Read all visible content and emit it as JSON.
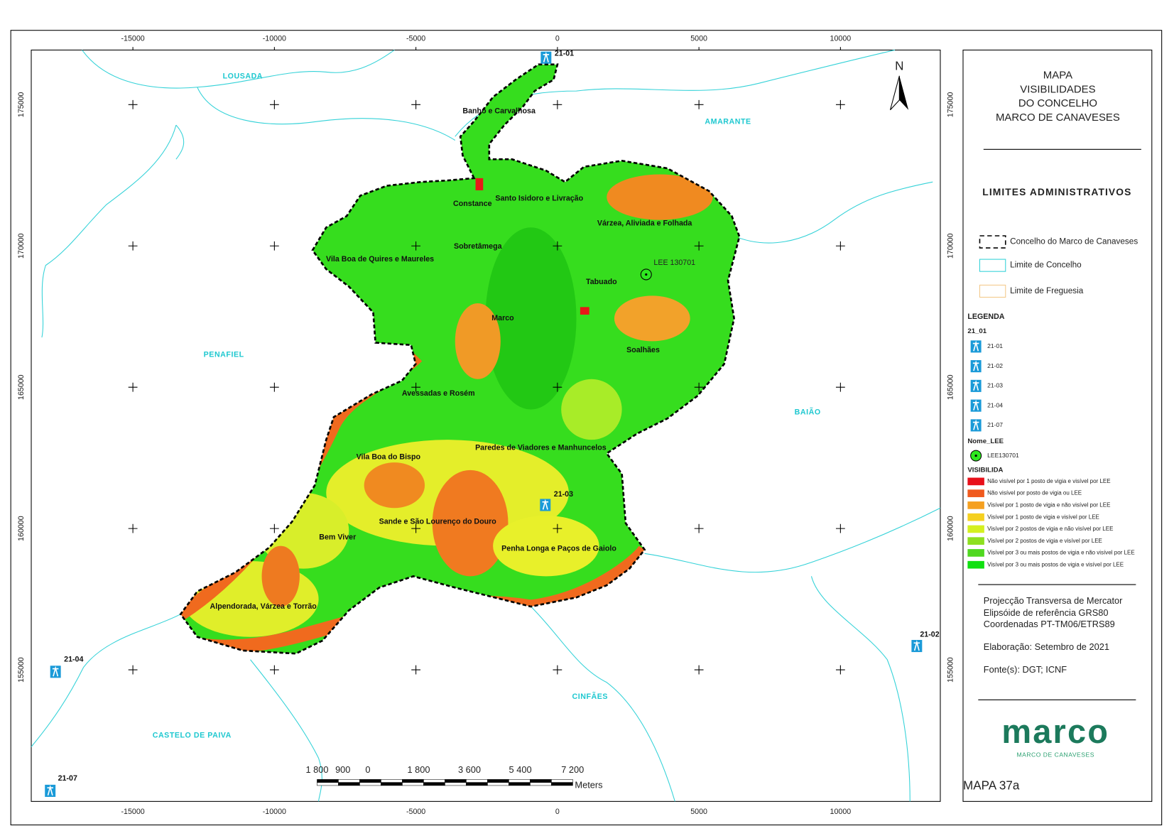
{
  "title": [
    "MAPA",
    "VISIBILIDADES",
    "DO CONCELHO",
    "MARCO DE CANAVESES"
  ],
  "map": {
    "north": "N",
    "grid_x": [
      -15000,
      -10000,
      -5000,
      0,
      5000,
      10000
    ],
    "grid_y": [
      175000,
      170000,
      165000,
      160000,
      155000
    ],
    "municipalities": [
      "LOUSADA",
      "AMARANTE",
      "PENAFIEL",
      "BAIÃO",
      "CINFÃES",
      "CASTELO DE PAIVA"
    ],
    "parishes": [
      "Banho e Carvalhosa",
      "Constance",
      "Santo Isidoro e Livração",
      "Várzea, Aliviada e Folhada",
      "Sobretâmega",
      "Vila Boa de Quires e Maureles",
      "Tabuado",
      "Marco",
      "Soalhães",
      "Avessadas e Rosém",
      "Paredes de Viadores e Manhuncelos",
      "Vila Boa do Bispo",
      "Sande e São Lourenço do Douro",
      "Bem Viver",
      "Penha Longa e Paços de Gaiolo",
      "Alpendorada, Várzea e Torrão"
    ],
    "towers": [
      "21-01",
      "21-03",
      "21-02",
      "21-04",
      "21-07"
    ],
    "lee": "LEE 130701",
    "scale": {
      "labels": [
        "1 800",
        "900",
        "0",
        "1 800",
        "3 600",
        "5 400",
        "7 200"
      ],
      "unit": "Meters"
    }
  },
  "panel": {
    "admin_title": "LIMITES ADMINISTRATIVOS",
    "admin_items": [
      "Concelho do Marco de Canaveses",
      "Limite de Concelho",
      "Limite de Freguesia"
    ],
    "legend_title": "LEGENDA",
    "tower_group": "21_01",
    "tower_items": [
      "21-01",
      "21-02",
      "21-03",
      "21-04",
      "21-07"
    ],
    "lee_group": "Nome_LEE",
    "lee_item": "LEE130701",
    "vis_group": "VISIBILIDA",
    "vis_classes": [
      {
        "label": "Não visível por 1 posto de vigia e visível por LEE",
        "color": "#e8101a"
      },
      {
        "label": "Não visível por posto de vigia ou LEE",
        "color": "#f05a1e"
      },
      {
        "label": "Visível por 1 posto de vigia e não visível por LEE",
        "color": "#f5a020"
      },
      {
        "label": "Visível por 1 posto de vigia e visível por LEE",
        "color": "#f5d020"
      },
      {
        "label": "Visível por 2 postos de vigia e não visível por LEE",
        "color": "#d4f020"
      },
      {
        "label": "Visível por 2 postos de vigia e visível por LEE",
        "color": "#8ee020"
      },
      {
        "label": "Visível por 3 ou mais postos de vigia e não visível por LEE",
        "color": "#50d820"
      },
      {
        "label": "Visível por 3 ou mais postos de vigia e visível por LEE",
        "color": "#10e010"
      }
    ],
    "notes": [
      "Projecção Transversa de Mercator",
      "Elipsóide de referência GRS80",
      "Coordenadas PT-TM06/ETRS89",
      "Elaboração: Setembro de 2021",
      "Fonte(s): DGT; ICNF"
    ],
    "logo": "marco",
    "logo_sub": "MARCO DE CANAVESES",
    "map_id": "MAPA 37a"
  }
}
